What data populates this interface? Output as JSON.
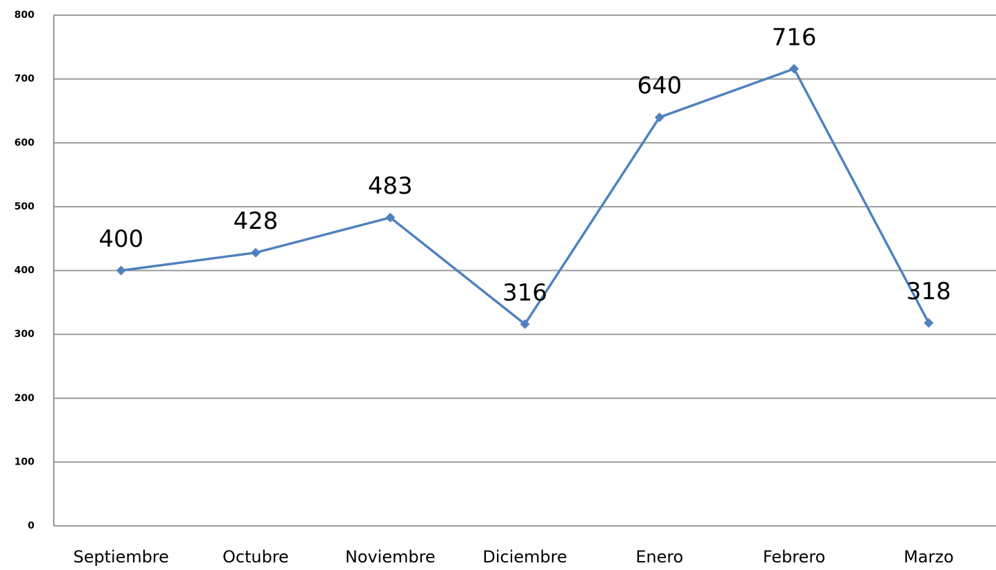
{
  "chart_data": {
    "type": "line",
    "categories": [
      "Septiembre",
      "Octubre",
      "Noviembre",
      "Diciembre",
      "Enero",
      "Febrero",
      "Marzo"
    ],
    "series": [
      {
        "color": "#4f81bd",
        "values": [
          400,
          428,
          483,
          316,
          640,
          716,
          318
        ]
      }
    ],
    "ylim": [
      0,
      800
    ],
    "yticks": [
      0,
      100,
      200,
      300,
      400,
      500,
      600,
      700,
      800
    ],
    "grid": true
  }
}
